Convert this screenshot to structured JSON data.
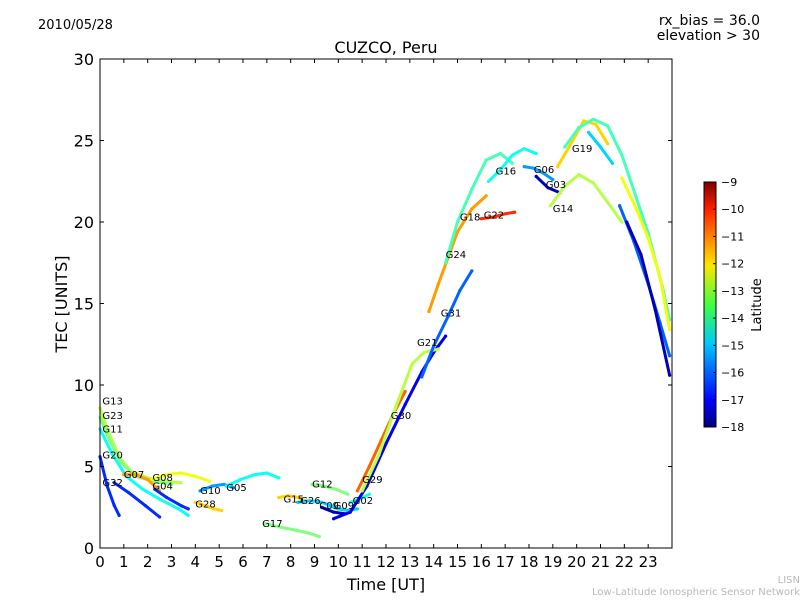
{
  "header": {
    "date": "2010/05/28",
    "rx_bias_label": "rx_bias = 36.0",
    "elevation_label": "elevation > 30"
  },
  "footer": {
    "credit_short": "LISN",
    "credit_long": "Low-Latitude Ionospheric Sensor Network"
  },
  "chart_data": {
    "type": "scatter",
    "title": "CUZCO, Peru",
    "xlabel": "Time [UT]",
    "ylabel": "TEC [UNITS]",
    "xlim": [
      0,
      24
    ],
    "ylim": [
      0,
      30
    ],
    "xticks": [
      0,
      1,
      2,
      3,
      4,
      5,
      6,
      7,
      8,
      9,
      10,
      11,
      12,
      13,
      14,
      15,
      16,
      17,
      18,
      19,
      20,
      21,
      22,
      23
    ],
    "yticks": [
      0,
      5,
      10,
      15,
      20,
      25,
      30
    ],
    "grid": false,
    "colorbar": {
      "label": "Latitude",
      "range": [
        -18,
        -9
      ],
      "ticks": [
        -9,
        -10,
        -11,
        -12,
        -13,
        -14,
        -15,
        -16,
        -17,
        -18
      ],
      "colormap": "jet"
    },
    "series": [
      {
        "name": "G13",
        "lat": -13,
        "label_at": [
          0.1,
          8.8
        ],
        "x": [
          0,
          0.3,
          0.8,
          1.3,
          2,
          2.7,
          3.4
        ],
        "y": [
          8.6,
          7.3,
          5.6,
          4.7,
          4.3,
          4.1,
          4.0
        ]
      },
      {
        "name": "G23",
        "lat": -13.5,
        "label_at": [
          0.1,
          7.9
        ],
        "x": [
          0,
          0.4,
          0.9,
          1.5,
          2.2,
          3
        ],
        "y": [
          8.0,
          6.6,
          5.2,
          4.4,
          4.1,
          3.9
        ]
      },
      {
        "name": "G11",
        "lat": -14.5,
        "label_at": [
          0.1,
          7.1
        ],
        "x": [
          0,
          0.5,
          1.1,
          1.8,
          2.5,
          3.3,
          3.7
        ],
        "y": [
          7.3,
          5.8,
          4.4,
          3.6,
          3.0,
          2.4,
          2.0
        ]
      },
      {
        "name": "G20",
        "lat": -16.5,
        "label_at": [
          0.1,
          5.5
        ],
        "x": [
          0,
          0.3,
          0.6,
          0.8
        ],
        "y": [
          5.6,
          3.8,
          2.6,
          2.0
        ]
      },
      {
        "name": "G32",
        "lat": -16.5,
        "label_at": [
          0.1,
          3.8
        ],
        "x": [
          0.6,
          1.2,
          1.9,
          2.5
        ],
        "y": [
          4.0,
          3.4,
          2.6,
          1.9
        ]
      },
      {
        "name": "G07",
        "lat": -11.5,
        "label_at": [
          1.0,
          4.3
        ],
        "x": [
          1,
          1.5,
          2,
          2.5
        ],
        "y": [
          4.5,
          4.5,
          4.2,
          3.5
        ]
      },
      {
        "name": "G08",
        "lat": -12.5,
        "label_at": [
          2.2,
          4.1
        ],
        "x": [
          2.2,
          2.8,
          3.4,
          4,
          4.6
        ],
        "y": [
          4.2,
          4.5,
          4.6,
          4.4,
          4.1
        ]
      },
      {
        "name": "G04",
        "lat": -16.5,
        "label_at": [
          2.2,
          3.6
        ],
        "x": [
          2.3,
          2.8,
          3.4,
          3.7
        ],
        "y": [
          3.6,
          3.1,
          2.6,
          2.4
        ]
      },
      {
        "name": "G10",
        "lat": -15.5,
        "label_at": [
          4.2,
          3.3
        ],
        "x": [
          4.2,
          4.7,
          5.2,
          5.6
        ],
        "y": [
          3.5,
          3.8,
          3.9,
          3.7
        ]
      },
      {
        "name": "G05",
        "lat": -14.5,
        "label_at": [
          5.3,
          3.5
        ],
        "x": [
          5.3,
          5.9,
          6.5,
          7,
          7.5
        ],
        "y": [
          3.8,
          4.2,
          4.5,
          4.6,
          4.3
        ]
      },
      {
        "name": "G28",
        "lat": -12,
        "label_at": [
          4.0,
          2.5
        ],
        "x": [
          4,
          4.4,
          4.8,
          5.1
        ],
        "y": [
          2.8,
          2.6,
          2.4,
          2.3
        ]
      },
      {
        "name": "G17",
        "lat": -13.5,
        "label_at": [
          6.8,
          1.3
        ],
        "x": [
          6.9,
          7.5,
          8.2,
          8.8,
          9.2
        ],
        "y": [
          1.5,
          1.3,
          1.1,
          0.9,
          0.7
        ]
      },
      {
        "name": "G15",
        "lat": -12,
        "label_at": [
          7.7,
          2.8
        ],
        "x": [
          7.5,
          7.9,
          8.3,
          8.6
        ],
        "y": [
          3.1,
          3.2,
          3.1,
          2.9
        ]
      },
      {
        "name": "G26",
        "lat": -15,
        "label_at": [
          8.4,
          2.7
        ],
        "x": [
          8.3,
          8.8,
          9.3,
          9.7
        ],
        "y": [
          2.8,
          2.9,
          2.8,
          2.6
        ]
      },
      {
        "name": "G12",
        "lat": -13.5,
        "label_at": [
          8.9,
          3.7
        ],
        "x": [
          8.9,
          9.4,
          9.9,
          10.4
        ],
        "y": [
          3.9,
          3.8,
          3.6,
          3.3
        ]
      },
      {
        "name": "G09",
        "lat": -15,
        "label_at": [
          9.8,
          2.4
        ],
        "x": [
          9.6,
          10,
          10.4,
          10.8
        ],
        "y": [
          2.6,
          2.4,
          2.3,
          2.4
        ]
      },
      {
        "name": "C09",
        "lat": -17.5,
        "label_at": [
          9.2,
          2.4
        ],
        "x": [
          9.3,
          9.8,
          10.3
        ],
        "y": [
          2.5,
          2.2,
          2.1
        ]
      },
      {
        "name": "G02",
        "lat": -14.5,
        "label_at": [
          10.6,
          2.7
        ],
        "x": [
          10.5,
          10.9,
          11.3
        ],
        "y": [
          2.8,
          3.0,
          3.3
        ]
      },
      {
        "name": "G29",
        "lat": -11,
        "label_at": [
          11.0,
          4.0
        ],
        "x": [
          10.8,
          11.3,
          11.8,
          12.3,
          12.8
        ],
        "y": [
          3.5,
          5.0,
          6.6,
          8.2,
          9.6
        ]
      },
      {
        "name": "G30",
        "lat": -17,
        "label_at": [
          12.2,
          7.9
        ],
        "x": [
          9.8,
          10.5,
          11.2,
          12,
          12.8,
          13.5,
          14,
          14.5
        ],
        "y": [
          1.8,
          2.2,
          3.8,
          6.4,
          8.8,
          10.8,
          12.0,
          13.0
        ]
      },
      {
        "name": "G21",
        "lat": -13,
        "label_at": [
          13.3,
          12.4
        ],
        "x": [
          11,
          11.7,
          12.4,
          13.1,
          13.6,
          14.2
        ],
        "y": [
          3.5,
          5.7,
          8.6,
          11.3,
          12.0,
          12.2
        ]
      },
      {
        "name": "G31",
        "lat": -16,
        "label_at": [
          14.3,
          14.2
        ],
        "x": [
          13.5,
          14,
          14.6,
          15.1,
          15.6
        ],
        "y": [
          10.5,
          12.4,
          14.2,
          15.8,
          17.0
        ]
      },
      {
        "name": "G24",
        "lat": -11.5,
        "label_at": [
          14.5,
          17.8
        ],
        "x": [
          13.8,
          14.2,
          14.6,
          15,
          15.6,
          16.2
        ],
        "y": [
          14.5,
          16.2,
          17.8,
          19.4,
          20.8,
          21.6
        ]
      },
      {
        "name": "G18",
        "lat": -14,
        "label_at": [
          15.1,
          20.1
        ],
        "x": [
          14.5,
          15,
          15.6,
          16.2,
          16.8,
          17.3
        ],
        "y": [
          17.5,
          20,
          22,
          23.8,
          24.2,
          23.6
        ]
      },
      {
        "name": "G22",
        "lat": -10.5,
        "label_at": [
          16.1,
          20.2
        ],
        "x": [
          16,
          16.5,
          17,
          17.4
        ],
        "y": [
          20.2,
          20.3,
          20.5,
          20.6
        ]
      },
      {
        "name": "G16",
        "lat": -14.5,
        "label_at": [
          16.6,
          22.9
        ],
        "x": [
          16.3,
          16.8,
          17.3,
          17.8,
          18.3
        ],
        "y": [
          22.5,
          23.2,
          24.1,
          24.5,
          24.2
        ]
      },
      {
        "name": "G06",
        "lat": -15.5,
        "label_at": [
          18.2,
          23.0
        ],
        "x": [
          17.8,
          18.2,
          18.6,
          19
        ],
        "y": [
          23.4,
          23.3,
          23.0,
          22.6
        ]
      },
      {
        "name": "G03",
        "lat": -17.5,
        "label_at": [
          18.7,
          22.1
        ],
        "x": [
          18.3,
          18.8,
          19.3
        ],
        "y": [
          22.8,
          22.1,
          21.8
        ]
      },
      {
        "name": "G19",
        "lat": -12,
        "label_at": [
          19.8,
          24.3
        ],
        "x": [
          19.2,
          19.8,
          20.3,
          20.8,
          21.3
        ],
        "y": [
          23.4,
          24.9,
          26.2,
          26.0,
          24.8
        ]
      },
      {
        "name": "G14",
        "lat": -13,
        "label_at": [
          19.0,
          20.6
        ],
        "x": [
          18.9,
          19.5,
          20.1,
          20.7,
          21.3,
          21.9
        ],
        "y": [
          21.0,
          22.2,
          22.9,
          22.4,
          21.2,
          20.0
        ]
      },
      {
        "name": "",
        "lat": -14,
        "label_at": null,
        "x": [
          19.5,
          20.1,
          20.7,
          21.3,
          21.9,
          22.5,
          23,
          23.6,
          23.9
        ],
        "y": [
          24.6,
          25.8,
          26.3,
          25.9,
          24.1,
          21.5,
          19.3,
          16,
          14.0
        ]
      },
      {
        "name": "",
        "lat": -12.5,
        "label_at": null,
        "x": [
          21.9,
          22.5,
          23,
          23.5,
          23.9
        ],
        "y": [
          22.7,
          20.8,
          19.0,
          16.6,
          13.4
        ]
      },
      {
        "name": "",
        "lat": -16,
        "label_at": null,
        "x": [
          21.8,
          22.4,
          23,
          23.5,
          23.9
        ],
        "y": [
          21.0,
          18.8,
          16.2,
          13.8,
          11.8
        ]
      },
      {
        "name": "",
        "lat": -17.5,
        "label_at": null,
        "x": [
          22.1,
          22.7,
          23.3,
          23.9
        ],
        "y": [
          20.0,
          18.0,
          14.6,
          10.6
        ]
      },
      {
        "name": "",
        "lat": -15,
        "label_at": null,
        "x": [
          20.5,
          21,
          21.5
        ],
        "y": [
          25.5,
          24.6,
          23.6
        ]
      }
    ]
  }
}
